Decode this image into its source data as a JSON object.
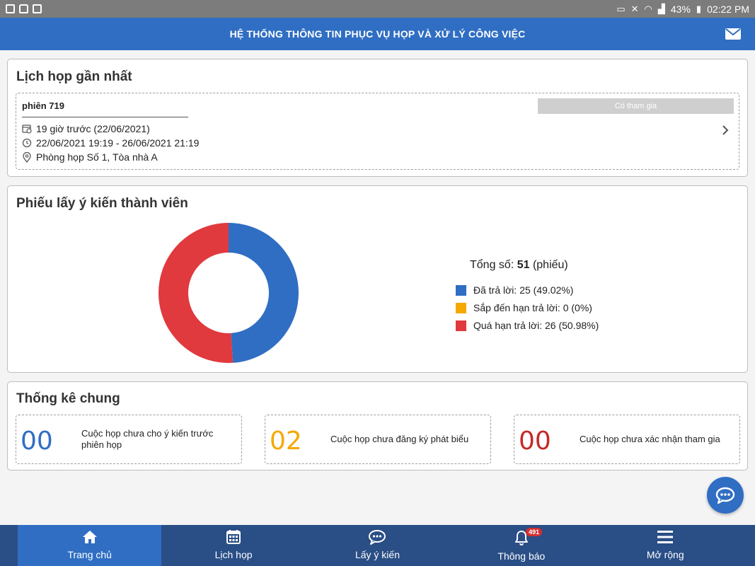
{
  "status_bar": {
    "battery": "43%",
    "time": "02:22 PM"
  },
  "header": {
    "title": "HỆ THỐNG THÔNG TIN PHỤC VỤ HỌP VÀ XỬ LÝ CÔNG VIỆC"
  },
  "recent_meeting": {
    "title": "Lịch họp gần nhất",
    "name": "phiên 719",
    "status": "Có tham gia",
    "created": "19 giờ trước (22/06/2021)",
    "time_range": "22/06/2021 19:19 - 26/06/2021 21:19",
    "location": "Phòng họp Số 1, Tòa nhà A"
  },
  "poll": {
    "title": "Phiếu lấy ý kiến thành viên",
    "total_prefix": "Tổng số: ",
    "total_value": "51",
    "total_suffix": " (phiếu)"
  },
  "chart_data": {
    "type": "pie",
    "categories": [
      "Đã trả lời",
      "Sắp đến hạn trả lời",
      "Quá hạn trả lời"
    ],
    "values": [
      25,
      0,
      26
    ],
    "percentages": [
      49.02,
      0,
      50.98
    ],
    "colors": [
      "#2f6ec3",
      "#f5a800",
      "#e0393e"
    ],
    "legend_labels": [
      "Đã trả lời: 25 (49.02%)",
      "Sắp đến hạn trả lời: 0 (0%)",
      "Quá hạn trả lời: 26 (50.98%)"
    ],
    "legend_position": "right"
  },
  "stats": {
    "title": "Thống kê chung",
    "items": [
      {
        "value": "00",
        "label": "Cuộc họp chưa cho ý kiến trước phiên họp",
        "color": "#2f6ec3"
      },
      {
        "value": "02",
        "label": "Cuộc họp chưa đăng ký phát biểu",
        "color": "#f5a800"
      },
      {
        "value": "00",
        "label": "Cuộc họp chưa xác nhận tham gia",
        "color": "#c62828"
      }
    ]
  },
  "bottom_nav": {
    "items": [
      {
        "label": "Trang chủ",
        "icon": "home-icon"
      },
      {
        "label": "Lịch họp",
        "icon": "calendar-icon"
      },
      {
        "label": "Lấy ý kiến",
        "icon": "chat-icon"
      },
      {
        "label": "Thông báo",
        "icon": "bell-icon",
        "badge": "491"
      },
      {
        "label": "Mở rộng",
        "icon": "menu-icon"
      }
    ]
  }
}
